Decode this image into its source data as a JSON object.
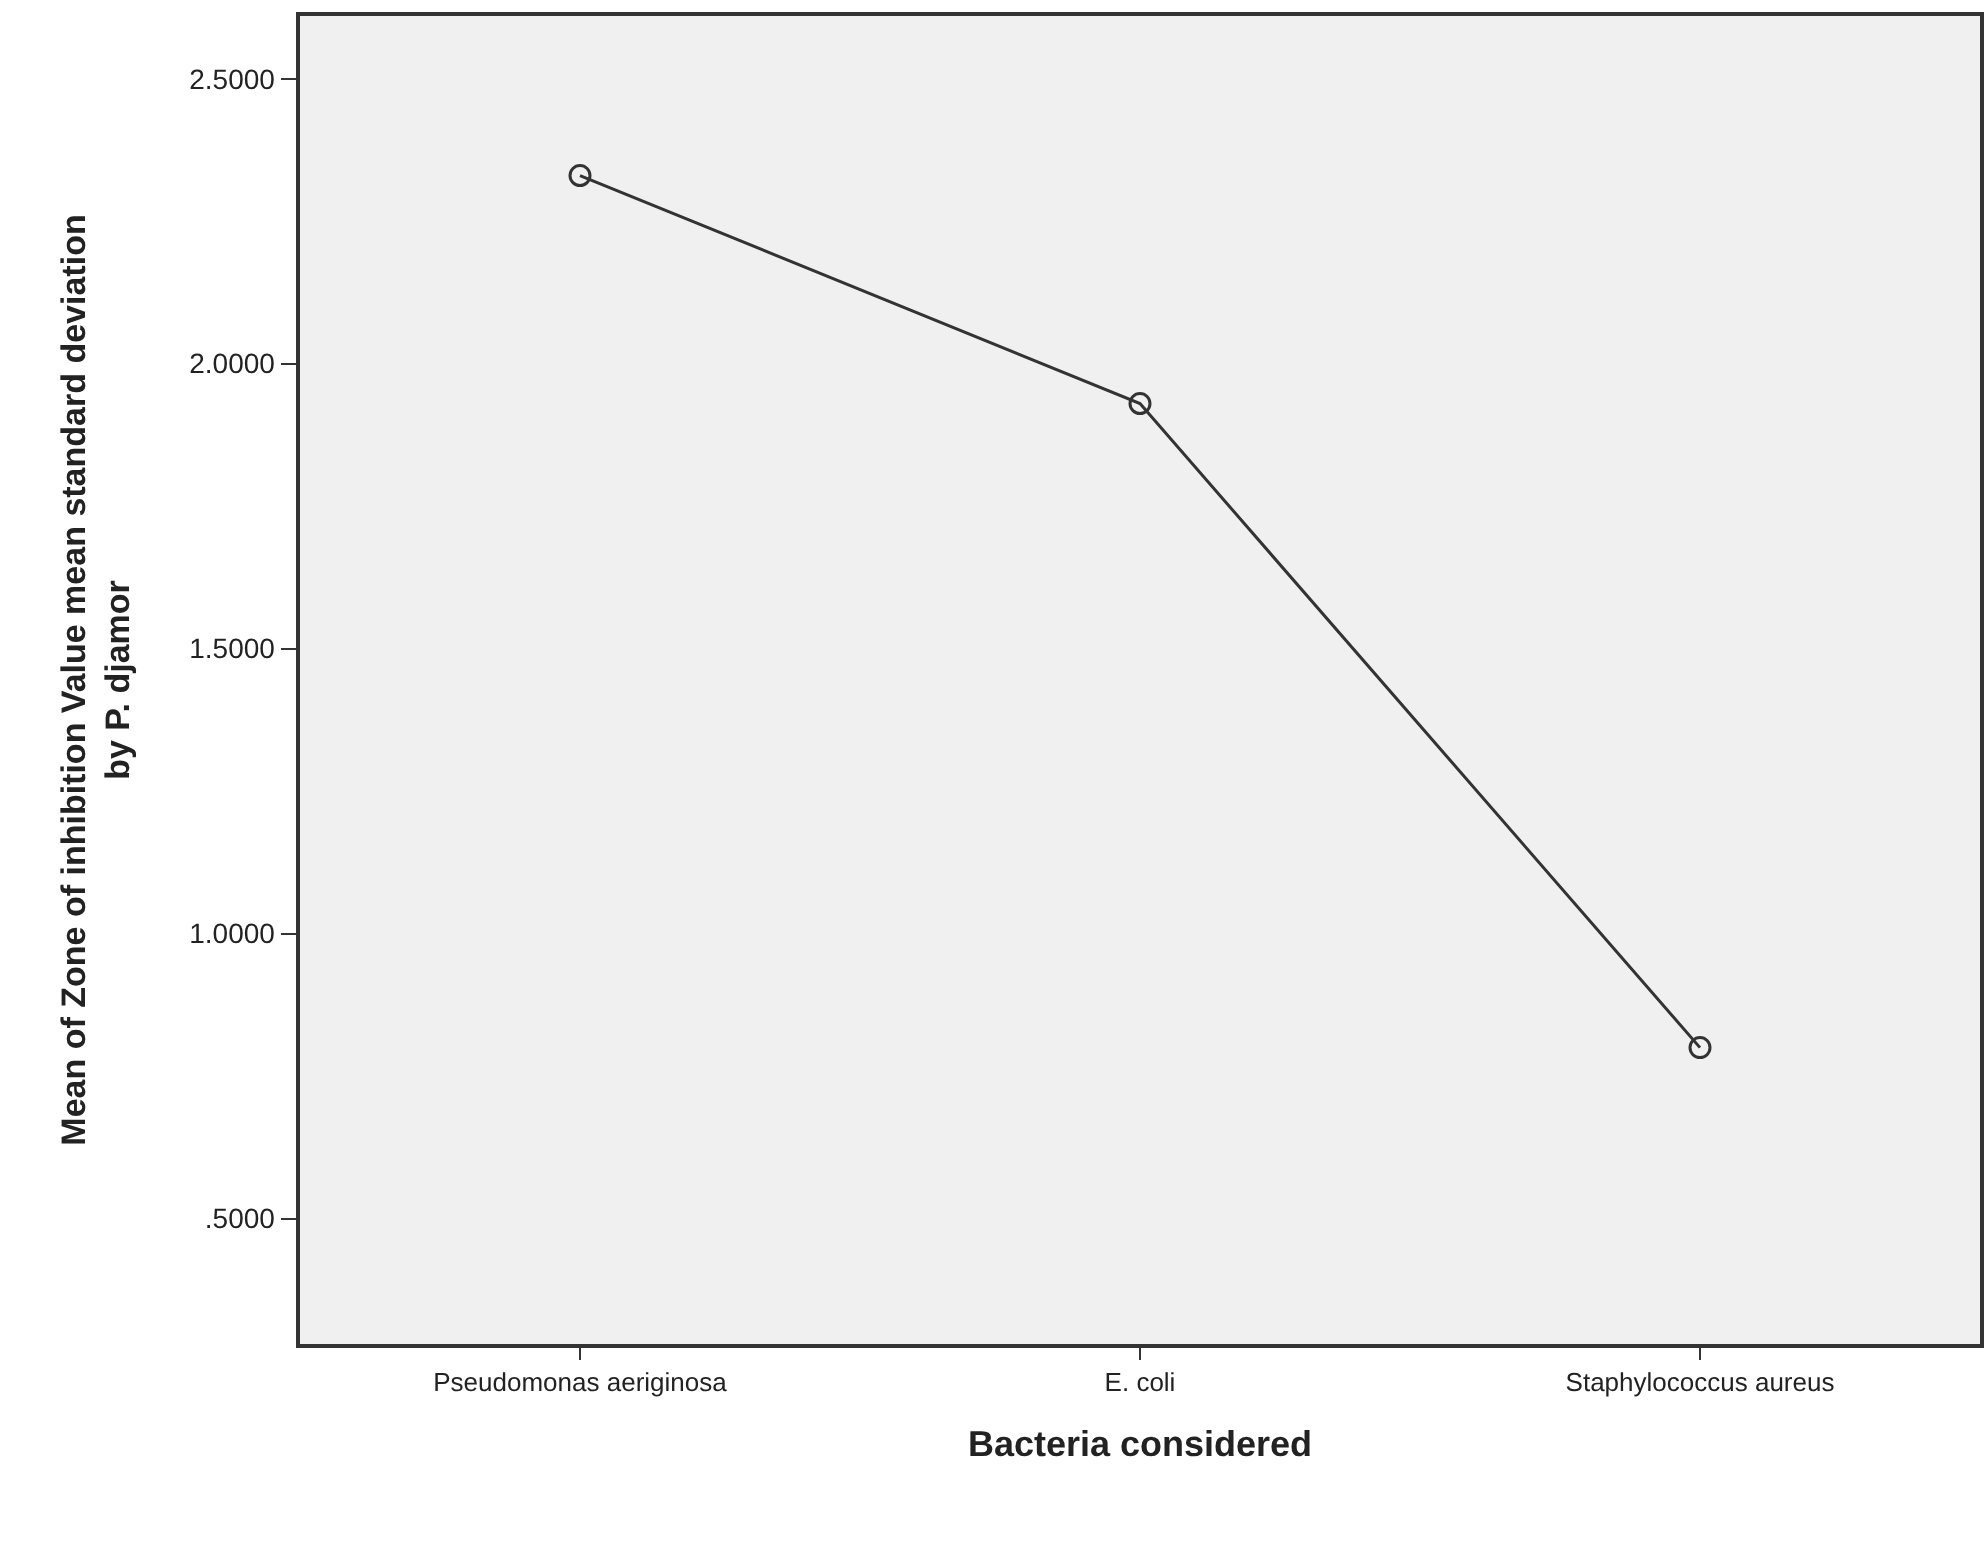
{
  "chart_data": {
    "type": "line",
    "xlabel": "Bacteria considered",
    "ylabel": "Mean of Zone of inhibition Value mean standard deviation\nby P. djamor",
    "categories": [
      "Pseudomonas aeriginosa",
      "E. coli",
      "Staphylococcus aureus"
    ],
    "series": [
      {
        "color": "#333333",
        "values": [
          2.33,
          1.93,
          0.8
        ]
      }
    ],
    "ylim": [
      0.28,
      2.61
    ],
    "yticks": [
      {
        "value": 0.5,
        "label": ".5000"
      },
      {
        "value": 1.0,
        "label": "1.0000"
      },
      {
        "value": 1.5,
        "label": "1.5000"
      },
      {
        "value": 2.0,
        "label": "2.0000"
      },
      {
        "value": 2.5,
        "label": "2.5000"
      }
    ],
    "marker": "circle",
    "line_style": "solid",
    "grid": false
  }
}
